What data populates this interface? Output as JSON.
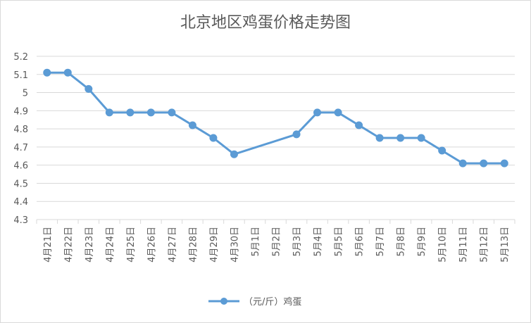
{
  "chart_data": {
    "type": "line",
    "title": "北京地区鸡蛋价格走势图",
    "xlabel": "",
    "ylabel": "",
    "ylim": [
      4.3,
      5.2
    ],
    "ytick_step": 0.1,
    "grid": true,
    "legend_position": "bottom",
    "categories": [
      "4月21日",
      "4月22日",
      "4月23日",
      "4月24日",
      "4月25日",
      "4月26日",
      "4月27日",
      "4月28日",
      "4月29日",
      "4月30日",
      "5月1日",
      "5月2日",
      "5月3日",
      "5月4日",
      "5月5日",
      "5月6日",
      "5月7日",
      "5月8日",
      "5月9日",
      "5月10日",
      "5月11日",
      "5月12日",
      "5月13日"
    ],
    "series": [
      {
        "name": "（元/斤）鸡蛋",
        "color": "#5b9bd5",
        "values": [
          5.11,
          5.11,
          5.02,
          4.89,
          4.89,
          4.89,
          4.89,
          4.82,
          4.75,
          4.66,
          null,
          null,
          4.77,
          4.89,
          4.89,
          4.82,
          4.75,
          4.75,
          4.75,
          4.68,
          4.61,
          4.61,
          4.61
        ]
      }
    ]
  },
  "colors": {
    "grid": "#d9d9d9",
    "text": "#595959",
    "frame": "#d9d9d9"
  }
}
